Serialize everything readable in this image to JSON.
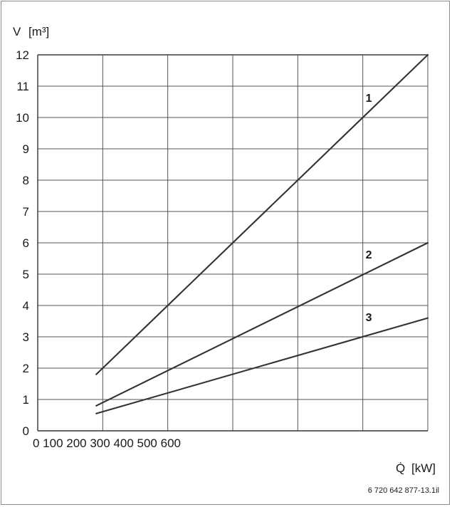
{
  "chart_data": {
    "type": "line",
    "ylabel": "V",
    "ylabel_unit": "[m³]",
    "xlabel": "Q̇",
    "xlabel_unit": "[kW]",
    "y_ticks": [
      "0",
      "1",
      "2",
      "3",
      "4",
      "5",
      "6",
      "7",
      "8",
      "9",
      "10",
      "11",
      "12"
    ],
    "x_tick_text": "0 100 200 300 400 500 600",
    "ylim": [
      0,
      12
    ],
    "grid": true,
    "series": [
      {
        "name": "1",
        "x": [
          0.9,
          6
        ],
        "y": [
          1.8,
          12
        ],
        "label_at": [
          5,
          10
        ]
      },
      {
        "name": "2",
        "x": [
          0.9,
          6
        ],
        "y": [
          0.8,
          6
        ],
        "label_at": [
          5,
          5
        ]
      },
      {
        "name": "3",
        "x": [
          0.9,
          6
        ],
        "y": [
          0.55,
          3.6
        ],
        "label_at": [
          5,
          3
        ]
      }
    ]
  },
  "figure_ref": "6 720 642 877-13.1il"
}
